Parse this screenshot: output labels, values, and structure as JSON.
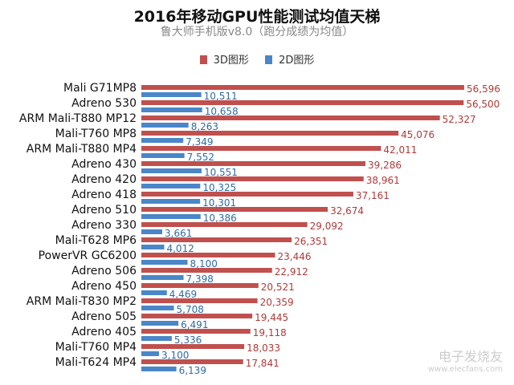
{
  "chart_data": {
    "type": "bar",
    "orientation": "horizontal",
    "title": "2016年移动GPU性能测试均值天梯",
    "subtitle": "鲁大师手机版v8.0（跑分成绩为均值）",
    "legend_position": "top",
    "grid": false,
    "categories": [
      "Mali G71MP8",
      "Adreno 530",
      "ARM Mali-T880 MP12",
      "Mali-T760 MP8",
      "ARM Mali-T880 MP4",
      "Adreno 430",
      "Adreno 420",
      "Adreno 418",
      "Adreno 510",
      "Adreno 330",
      "Mali-T628 MP6",
      "PowerVR GC6200",
      "Adreno 506",
      "Adreno 450",
      "ARM Mali-T830 MP2",
      "Adreno 505",
      "Adreno 405",
      "Mali-T760 MP4",
      "Mali-T624 MP4"
    ],
    "series": [
      {
        "name": "3D图形",
        "color": "#c0504d",
        "values": [
          56596,
          56500,
          52327,
          45076,
          42011,
          39286,
          38961,
          37161,
          32674,
          29092,
          26351,
          23446,
          22912,
          20521,
          20359,
          19445,
          19118,
          18033,
          17841
        ]
      },
      {
        "name": "2D图形",
        "color": "#4a86c8",
        "values": [
          10511,
          10658,
          8263,
          7349,
          7552,
          10551,
          10325,
          10301,
          10386,
          3661,
          4012,
          8100,
          7398,
          4469,
          5708,
          6491,
          5336,
          3100,
          6139
        ]
      }
    ]
  },
  "watermark": {
    "text": "电子发烧友",
    "url": "www.elecfans.com"
  }
}
